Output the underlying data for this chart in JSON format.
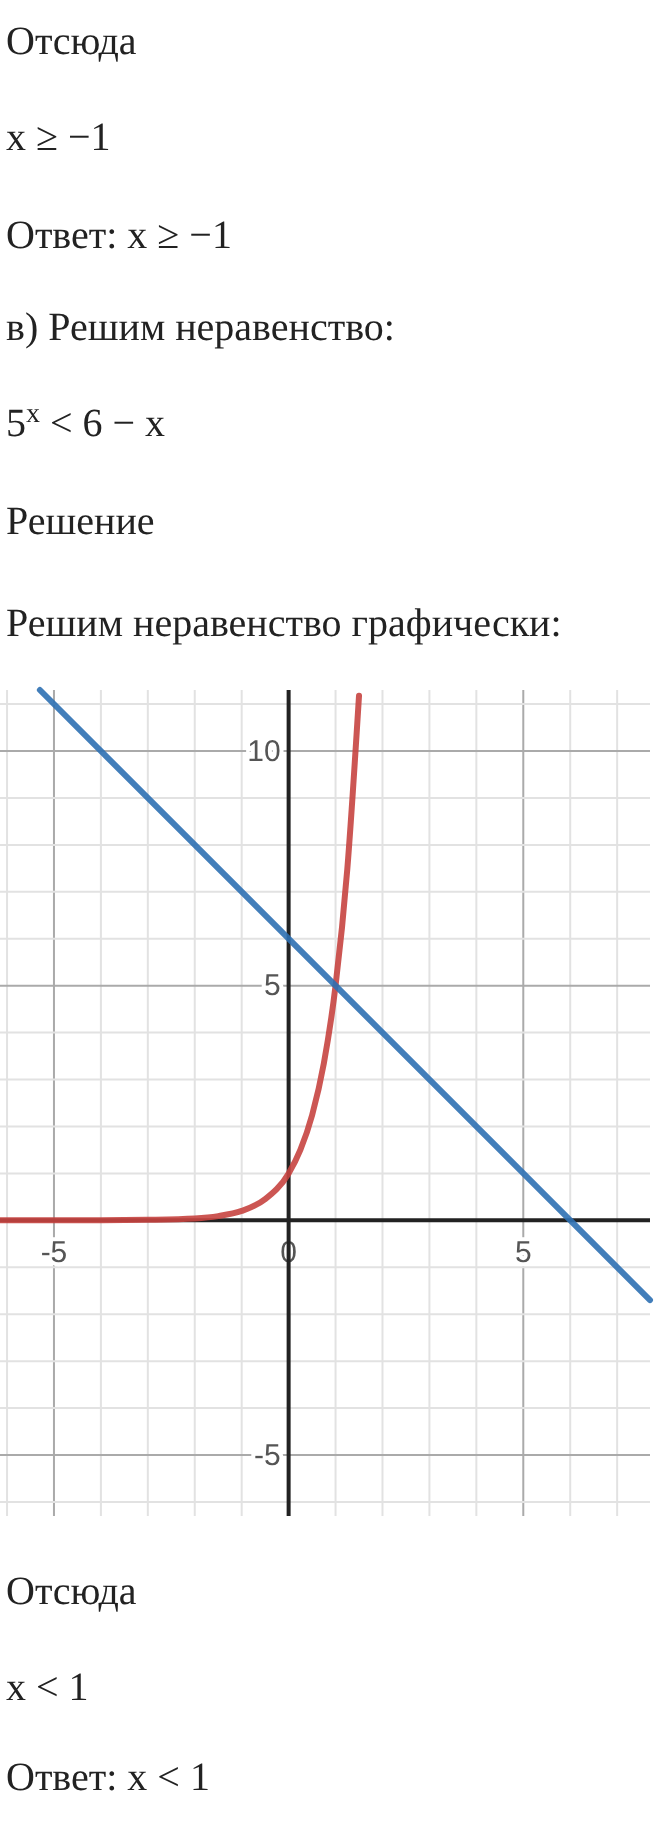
{
  "chart_data": {
    "type": "line",
    "title": "Решим неравенство графически:",
    "annotations": [
      "Отсюда",
      "x ≥ −1",
      "Ответ: x ≥ −1",
      "в) Решим неравенство:",
      "5$^{x}$ < 6 − x",
      "Решение",
      "Отсюда",
      "x < 1",
      "Ответ: x < 1"
    ],
    "series": [
      {
        "color": "#c74440",
        "x": [
          -6.15,
          -4,
          -3,
          -2,
          -1.5,
          -1,
          -0.5,
          0,
          0.25,
          0.5,
          0.75,
          1,
          1.25,
          1.5
        ],
        "values": [
          0,
          0,
          0.01,
          0.04,
          0.09,
          0.2,
          0.45,
          1,
          1.5,
          2.24,
          3.34,
          5,
          7.48,
          11.18
        ]
      },
      {
        "color": "#2d70b3",
        "x": [
          -5.3,
          7.7
        ],
        "values": [
          11.3,
          -1.7
        ]
      }
    ],
    "xlim": [
      -6.15,
      7.7
    ],
    "ylim": [
      -6.3,
      11.3
    ],
    "xticks": [
      {
        "value": -6,
        "label": null
      },
      -5,
      {
        "value": -4,
        "label": null
      },
      {
        "value": -3,
        "label": null
      },
      {
        "value": -2,
        "label": null
      },
      {
        "value": -1,
        "label": null
      },
      0,
      {
        "value": 1,
        "label": null
      },
      {
        "value": 2,
        "label": null
      },
      {
        "value": 3,
        "label": null
      },
      {
        "value": 4,
        "label": null
      },
      5,
      {
        "value": 6,
        "label": null
      },
      {
        "value": 7,
        "label": null
      }
    ],
    "yticks": [
      {
        "value": -6,
        "label": null
      },
      -5,
      {
        "value": -4,
        "label": null
      },
      {
        "value": -3,
        "label": null
      },
      {
        "value": -2,
        "label": null
      },
      {
        "value": -1,
        "label": null
      },
      {
        "value": 0,
        "label": null
      },
      {
        "value": 1,
        "label": null
      },
      {
        "value": 2,
        "label": null
      },
      {
        "value": 3,
        "label": null
      },
      {
        "value": 4,
        "label": null
      },
      5,
      {
        "value": 6,
        "label": null
      },
      {
        "value": 7,
        "label": null
      },
      {
        "value": 8,
        "label": null
      },
      {
        "value": 9,
        "label": null
      },
      10,
      {
        "value": 11,
        "label": null
      }
    ],
    "grid": true,
    "line_style": "solid",
    "marker": "none"
  }
}
